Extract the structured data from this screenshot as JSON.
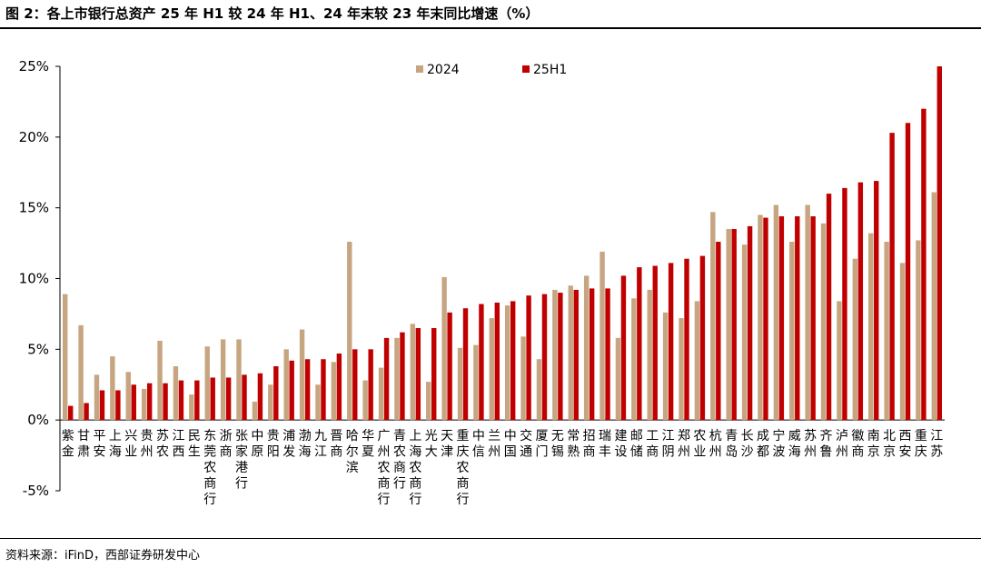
{
  "title": "图 2：各上市银行总资产 25 年 H1 较 24 年 H1、24 年末较 23 年末同比增速（%）",
  "source": "资料来源：iFinD，西部证券研发中心",
  "chart_data": {
    "type": "bar",
    "ylim": [
      -5,
      25
    ],
    "yticks": [
      -5,
      0,
      5,
      10,
      15,
      20,
      25
    ],
    "ytick_labels": [
      "-5%",
      "0%",
      "5%",
      "10%",
      "15%",
      "20%",
      "25%"
    ],
    "legend_position": "top-center",
    "grid": false,
    "categories": [
      "紫金",
      "甘肃",
      "平安",
      "上海",
      "兴业",
      "贵州",
      "苏农",
      "江西",
      "民生",
      "东莞农商行",
      "浙商",
      "张家港行",
      "中原",
      "贵阳",
      "浦发",
      "渤海",
      "九江",
      "晋商",
      "哈尔滨",
      "华夏",
      "广州农商行",
      "青农商行",
      "上海农商行",
      "光大",
      "天津",
      "重庆农商行",
      "中信",
      "兰州",
      "中国",
      "交通",
      "厦门",
      "无锡",
      "常熟",
      "招商",
      "瑞丰",
      "建设",
      "邮储",
      "工商",
      "江阴",
      "郑州",
      "农业",
      "杭州",
      "青岛",
      "长沙",
      "成都",
      "宁波",
      "威海",
      "苏州",
      "齐鲁",
      "泸州",
      "徽商",
      "南京",
      "北京",
      "西安",
      "重庆",
      "江苏"
    ],
    "series": [
      {
        "name": "2024",
        "color": "#c6a580",
        "values": [
          8.9,
          6.7,
          3.2,
          4.5,
          3.4,
          2.2,
          5.6,
          3.8,
          1.8,
          5.2,
          5.7,
          5.7,
          1.3,
          2.5,
          5.0,
          6.4,
          2.5,
          4.1,
          12.6,
          2.8,
          3.7,
          5.8,
          6.8,
          2.7,
          10.1,
          5.1,
          5.3,
          7.2,
          8.1,
          5.9,
          4.3,
          9.2,
          9.5,
          10.2,
          11.9,
          5.8,
          8.6,
          9.2,
          7.6,
          7.2,
          8.4,
          14.7,
          13.5,
          12.4,
          14.5,
          15.2,
          12.6,
          15.2,
          13.9,
          8.4,
          11.4,
          13.2,
          12.6,
          11.1,
          12.7,
          16.1
        ]
      },
      {
        "name": "25H1",
        "color": "#c00000",
        "values": [
          1.0,
          1.2,
          2.1,
          2.1,
          2.5,
          2.6,
          2.6,
          2.8,
          2.8,
          3.0,
          3.0,
          3.2,
          3.3,
          3.8,
          4.2,
          4.3,
          4.3,
          4.7,
          5.0,
          5.0,
          5.8,
          6.2,
          6.5,
          6.5,
          7.6,
          7.9,
          8.2,
          8.3,
          8.4,
          8.8,
          8.9,
          9.0,
          9.2,
          9.3,
          9.3,
          10.2,
          10.8,
          10.9,
          11.1,
          11.4,
          11.6,
          12.6,
          13.5,
          13.7,
          14.3,
          14.4,
          14.4,
          14.4,
          16.0,
          16.4,
          16.8,
          16.9,
          20.3,
          21.0,
          22.0,
          25.0
        ]
      }
    ]
  }
}
